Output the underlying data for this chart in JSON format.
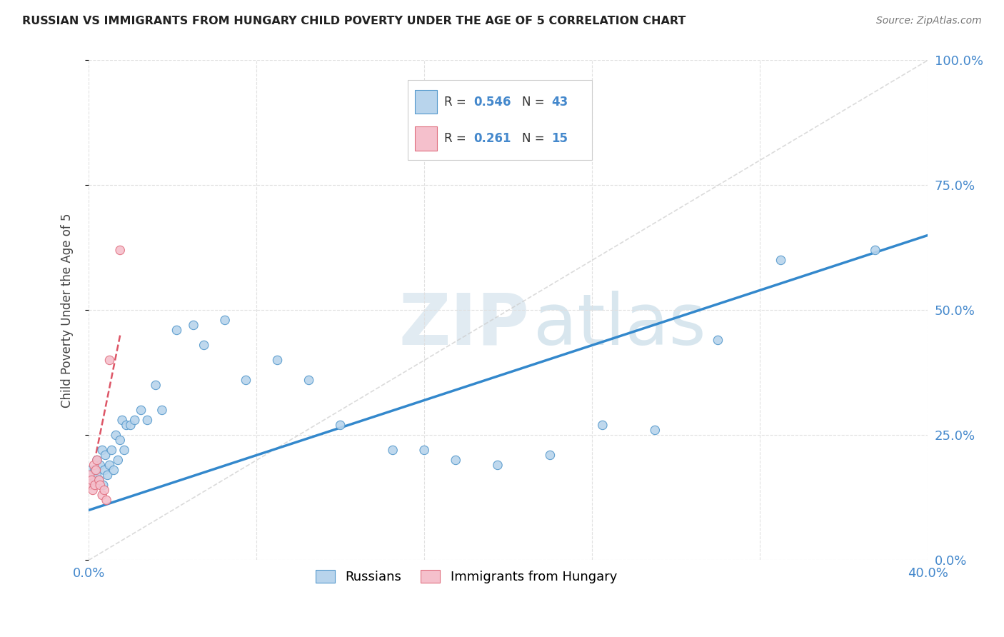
{
  "title": "RUSSIAN VS IMMIGRANTS FROM HUNGARY CHILD POVERTY UNDER THE AGE OF 5 CORRELATION CHART",
  "source": "Source: ZipAtlas.com",
  "ylabel": "Child Poverty Under the Age of 5",
  "ytick_vals": [
    0,
    25,
    50,
    75,
    100
  ],
  "xlim": [
    0,
    40
  ],
  "ylim": [
    0,
    100
  ],
  "legend_russians": "Russians",
  "legend_hungary": "Immigrants from Hungary",
  "R_russians": "0.546",
  "N_russians": "43",
  "R_hungary": "0.261",
  "N_hungary": "15",
  "color_russians_fill": "#b8d4ec",
  "color_russians_edge": "#5599cc",
  "color_hungary_fill": "#f5c0cc",
  "color_hungary_edge": "#e07080",
  "color_line_russians": "#3388cc",
  "color_line_hungary": "#dd5566",
  "color_dashed": "#cccccc",
  "russians_x": [
    0.15,
    0.3,
    0.4,
    0.5,
    0.55,
    0.65,
    0.7,
    0.75,
    0.8,
    0.9,
    1.0,
    1.1,
    1.2,
    1.3,
    1.4,
    1.5,
    1.6,
    1.7,
    1.8,
    2.0,
    2.2,
    2.5,
    2.8,
    3.2,
    3.5,
    4.2,
    5.0,
    5.5,
    6.5,
    7.5,
    9.0,
    10.5,
    12.0,
    14.5,
    16.0,
    17.5,
    19.5,
    22.0,
    24.5,
    27.0,
    30.0,
    33.0,
    37.5
  ],
  "russians_y": [
    17,
    18,
    20,
    16,
    19,
    22,
    15,
    18,
    21,
    17,
    19,
    22,
    18,
    25,
    20,
    24,
    28,
    22,
    27,
    27,
    28,
    30,
    28,
    35,
    30,
    46,
    47,
    43,
    48,
    36,
    40,
    36,
    27,
    22,
    22,
    20,
    19,
    21,
    27,
    26,
    44,
    60,
    62
  ],
  "russians_size": [
    350,
    80,
    80,
    80,
    80,
    80,
    80,
    80,
    80,
    80,
    80,
    80,
    80,
    80,
    80,
    80,
    80,
    80,
    80,
    80,
    80,
    80,
    80,
    80,
    80,
    80,
    80,
    80,
    80,
    80,
    80,
    80,
    80,
    80,
    80,
    80,
    80,
    80,
    80,
    80,
    80,
    80,
    80
  ],
  "hungary_x": [
    0.05,
    0.1,
    0.15,
    0.2,
    0.25,
    0.3,
    0.35,
    0.4,
    0.5,
    0.55,
    0.65,
    0.75,
    0.85,
    1.0,
    1.5
  ],
  "hungary_y": [
    17,
    15,
    16,
    14,
    19,
    15,
    18,
    20,
    16,
    15,
    13,
    14,
    12,
    40,
    62
  ],
  "hungary_size": [
    80,
    80,
    80,
    80,
    80,
    80,
    80,
    80,
    80,
    80,
    80,
    80,
    80,
    80,
    80
  ],
  "blue_line_x": [
    0,
    40
  ],
  "blue_line_y": [
    10,
    65
  ],
  "pink_line_x": [
    0,
    1.5
  ],
  "pink_line_y": [
    14,
    45
  ],
  "diag_line_x": [
    0,
    40
  ],
  "diag_line_y": [
    0,
    100
  ]
}
